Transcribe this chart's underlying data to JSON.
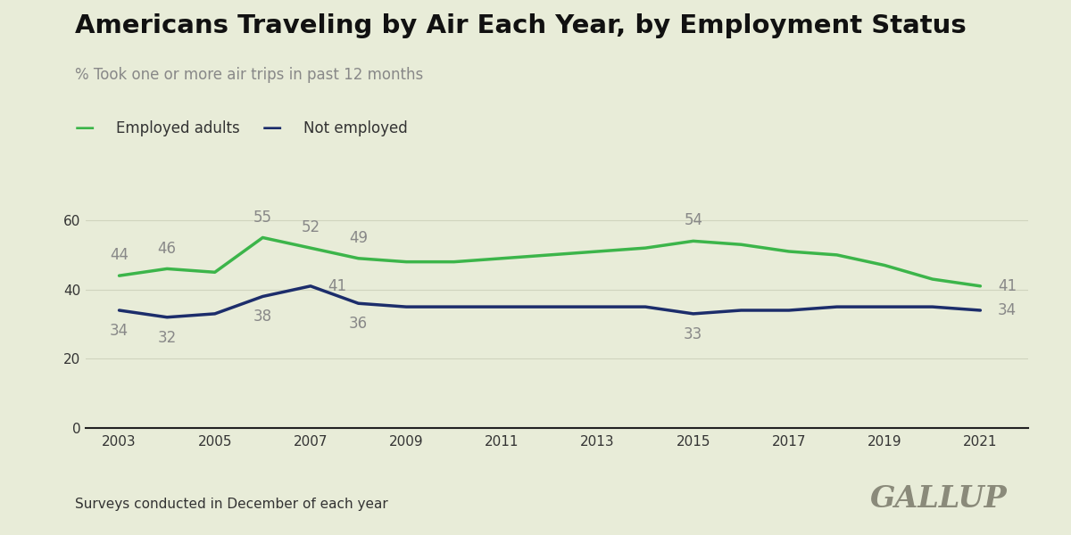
{
  "title": "Americans Traveling by Air Each Year, by Employment Status",
  "subtitle": "% Took one or more air trips in past 12 months",
  "footnote": "Surveys conducted in December of each year",
  "watermark": "GALLUP",
  "background_color": "#e8ecd8",
  "employed": {
    "label": "Employed adults",
    "color": "#3cb54a",
    "years": [
      2003,
      2004,
      2005,
      2006,
      2007,
      2008,
      2009,
      2010,
      2011,
      2012,
      2013,
      2014,
      2015,
      2016,
      2017,
      2018,
      2019,
      2020,
      2021
    ],
    "values": [
      44,
      46,
      45,
      55,
      52,
      49,
      48,
      48,
      49,
      50,
      51,
      52,
      54,
      53,
      51,
      50,
      47,
      43,
      41
    ]
  },
  "not_employed": {
    "label": "Not employed",
    "color": "#1c2d6b",
    "years": [
      2003,
      2004,
      2005,
      2006,
      2007,
      2008,
      2009,
      2010,
      2011,
      2012,
      2013,
      2014,
      2015,
      2016,
      2017,
      2018,
      2019,
      2020,
      2021
    ],
    "values": [
      34,
      32,
      33,
      38,
      41,
      36,
      35,
      35,
      35,
      35,
      35,
      35,
      33,
      34,
      34,
      35,
      35,
      35,
      34
    ]
  },
  "emp_annotations": {
    "years": [
      2003,
      2004,
      2006,
      2007,
      2008,
      2015,
      2021
    ],
    "values": [
      44,
      46,
      55,
      52,
      49,
      54,
      41
    ],
    "offsets_x": [
      0,
      0,
      0,
      0,
      0,
      0,
      14
    ],
    "offsets_y": [
      10,
      10,
      10,
      10,
      10,
      10,
      0
    ],
    "ha": [
      "center",
      "center",
      "center",
      "center",
      "center",
      "center",
      "left"
    ],
    "va": [
      "bottom",
      "bottom",
      "bottom",
      "bottom",
      "bottom",
      "bottom",
      "center"
    ]
  },
  "ne_annotations": {
    "years": [
      2003,
      2004,
      2006,
      2007,
      2008,
      2015,
      2021
    ],
    "values": [
      34,
      32,
      38,
      41,
      36,
      33,
      34
    ],
    "offsets_x": [
      0,
      0,
      0,
      14,
      0,
      0,
      14
    ],
    "offsets_y": [
      -10,
      -10,
      -10,
      0,
      -10,
      -10,
      0
    ],
    "ha": [
      "center",
      "center",
      "center",
      "left",
      "center",
      "center",
      "left"
    ],
    "va": [
      "top",
      "top",
      "top",
      "center",
      "top",
      "top",
      "center"
    ]
  },
  "xlim": [
    2002.3,
    2022.0
  ],
  "ylim": [
    0,
    68
  ],
  "yticks": [
    0,
    20,
    40,
    60
  ],
  "xticks": [
    2003,
    2005,
    2007,
    2009,
    2011,
    2013,
    2015,
    2017,
    2019,
    2021
  ],
  "title_fontsize": 21,
  "subtitle_fontsize": 12,
  "tick_fontsize": 11,
  "annotation_fontsize": 12,
  "legend_fontsize": 12,
  "footnote_fontsize": 11,
  "watermark_fontsize": 24,
  "grid_color": "#d0d4be",
  "axis_line_color": "#222222",
  "text_color": "#333333",
  "annotation_color": "#888888",
  "watermark_color": "#8a8a7a",
  "subtitle_color": "#888888"
}
